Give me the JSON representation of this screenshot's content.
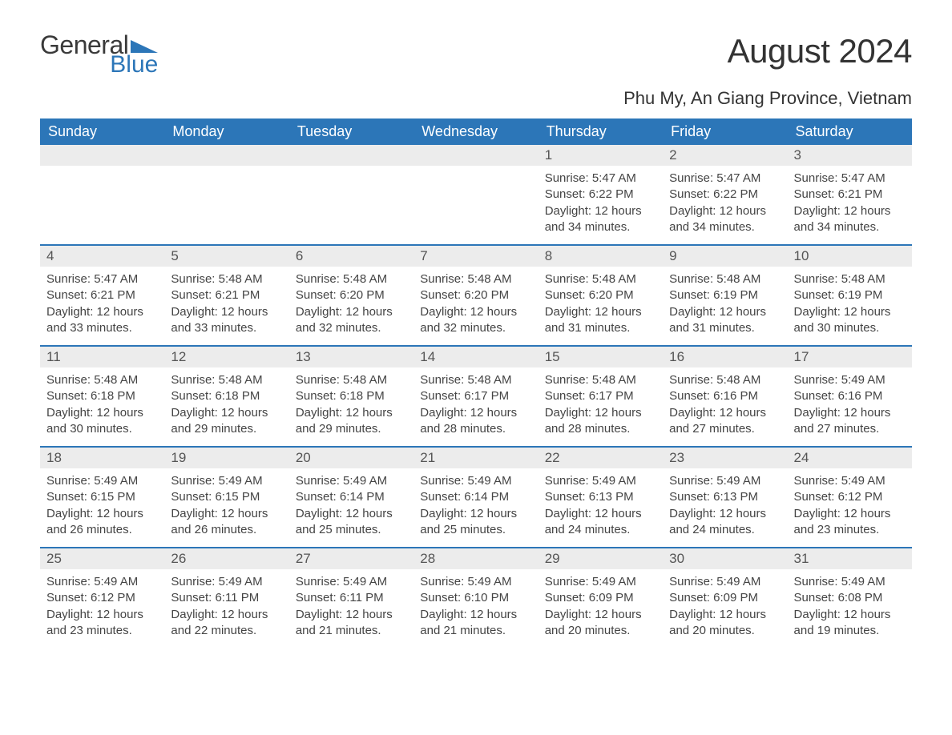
{
  "brand": {
    "word1": "General",
    "word2": "Blue",
    "triangle_color": "#2c76b8"
  },
  "title": "August 2024",
  "location": "Phu My, An Giang Province, Vietnam",
  "colors": {
    "header_bg": "#2c76b8",
    "header_text": "#ffffff",
    "daynum_bg": "#ececec",
    "week_border": "#2c76b8",
    "body_text": "#444444",
    "page_bg": "#ffffff"
  },
  "typography": {
    "title_fontsize": 42,
    "location_fontsize": 22,
    "weekday_fontsize": 18,
    "daynum_fontsize": 17,
    "body_fontsize": 15
  },
  "layout": {
    "columns": 7,
    "rows": 5,
    "first_day_column_index": 4
  },
  "weekdays": [
    "Sunday",
    "Monday",
    "Tuesday",
    "Wednesday",
    "Thursday",
    "Friday",
    "Saturday"
  ],
  "weeks": [
    [
      null,
      null,
      null,
      null,
      {
        "n": "1",
        "sr": "Sunrise: 5:47 AM",
        "ss": "Sunset: 6:22 PM",
        "d1": "Daylight: 12 hours",
        "d2": "and 34 minutes."
      },
      {
        "n": "2",
        "sr": "Sunrise: 5:47 AM",
        "ss": "Sunset: 6:22 PM",
        "d1": "Daylight: 12 hours",
        "d2": "and 34 minutes."
      },
      {
        "n": "3",
        "sr": "Sunrise: 5:47 AM",
        "ss": "Sunset: 6:21 PM",
        "d1": "Daylight: 12 hours",
        "d2": "and 34 minutes."
      }
    ],
    [
      {
        "n": "4",
        "sr": "Sunrise: 5:47 AM",
        "ss": "Sunset: 6:21 PM",
        "d1": "Daylight: 12 hours",
        "d2": "and 33 minutes."
      },
      {
        "n": "5",
        "sr": "Sunrise: 5:48 AM",
        "ss": "Sunset: 6:21 PM",
        "d1": "Daylight: 12 hours",
        "d2": "and 33 minutes."
      },
      {
        "n": "6",
        "sr": "Sunrise: 5:48 AM",
        "ss": "Sunset: 6:20 PM",
        "d1": "Daylight: 12 hours",
        "d2": "and 32 minutes."
      },
      {
        "n": "7",
        "sr": "Sunrise: 5:48 AM",
        "ss": "Sunset: 6:20 PM",
        "d1": "Daylight: 12 hours",
        "d2": "and 32 minutes."
      },
      {
        "n": "8",
        "sr": "Sunrise: 5:48 AM",
        "ss": "Sunset: 6:20 PM",
        "d1": "Daylight: 12 hours",
        "d2": "and 31 minutes."
      },
      {
        "n": "9",
        "sr": "Sunrise: 5:48 AM",
        "ss": "Sunset: 6:19 PM",
        "d1": "Daylight: 12 hours",
        "d2": "and 31 minutes."
      },
      {
        "n": "10",
        "sr": "Sunrise: 5:48 AM",
        "ss": "Sunset: 6:19 PM",
        "d1": "Daylight: 12 hours",
        "d2": "and 30 minutes."
      }
    ],
    [
      {
        "n": "11",
        "sr": "Sunrise: 5:48 AM",
        "ss": "Sunset: 6:18 PM",
        "d1": "Daylight: 12 hours",
        "d2": "and 30 minutes."
      },
      {
        "n": "12",
        "sr": "Sunrise: 5:48 AM",
        "ss": "Sunset: 6:18 PM",
        "d1": "Daylight: 12 hours",
        "d2": "and 29 minutes."
      },
      {
        "n": "13",
        "sr": "Sunrise: 5:48 AM",
        "ss": "Sunset: 6:18 PM",
        "d1": "Daylight: 12 hours",
        "d2": "and 29 minutes."
      },
      {
        "n": "14",
        "sr": "Sunrise: 5:48 AM",
        "ss": "Sunset: 6:17 PM",
        "d1": "Daylight: 12 hours",
        "d2": "and 28 minutes."
      },
      {
        "n": "15",
        "sr": "Sunrise: 5:48 AM",
        "ss": "Sunset: 6:17 PM",
        "d1": "Daylight: 12 hours",
        "d2": "and 28 minutes."
      },
      {
        "n": "16",
        "sr": "Sunrise: 5:48 AM",
        "ss": "Sunset: 6:16 PM",
        "d1": "Daylight: 12 hours",
        "d2": "and 27 minutes."
      },
      {
        "n": "17",
        "sr": "Sunrise: 5:49 AM",
        "ss": "Sunset: 6:16 PM",
        "d1": "Daylight: 12 hours",
        "d2": "and 27 minutes."
      }
    ],
    [
      {
        "n": "18",
        "sr": "Sunrise: 5:49 AM",
        "ss": "Sunset: 6:15 PM",
        "d1": "Daylight: 12 hours",
        "d2": "and 26 minutes."
      },
      {
        "n": "19",
        "sr": "Sunrise: 5:49 AM",
        "ss": "Sunset: 6:15 PM",
        "d1": "Daylight: 12 hours",
        "d2": "and 26 minutes."
      },
      {
        "n": "20",
        "sr": "Sunrise: 5:49 AM",
        "ss": "Sunset: 6:14 PM",
        "d1": "Daylight: 12 hours",
        "d2": "and 25 minutes."
      },
      {
        "n": "21",
        "sr": "Sunrise: 5:49 AM",
        "ss": "Sunset: 6:14 PM",
        "d1": "Daylight: 12 hours",
        "d2": "and 25 minutes."
      },
      {
        "n": "22",
        "sr": "Sunrise: 5:49 AM",
        "ss": "Sunset: 6:13 PM",
        "d1": "Daylight: 12 hours",
        "d2": "and 24 minutes."
      },
      {
        "n": "23",
        "sr": "Sunrise: 5:49 AM",
        "ss": "Sunset: 6:13 PM",
        "d1": "Daylight: 12 hours",
        "d2": "and 24 minutes."
      },
      {
        "n": "24",
        "sr": "Sunrise: 5:49 AM",
        "ss": "Sunset: 6:12 PM",
        "d1": "Daylight: 12 hours",
        "d2": "and 23 minutes."
      }
    ],
    [
      {
        "n": "25",
        "sr": "Sunrise: 5:49 AM",
        "ss": "Sunset: 6:12 PM",
        "d1": "Daylight: 12 hours",
        "d2": "and 23 minutes."
      },
      {
        "n": "26",
        "sr": "Sunrise: 5:49 AM",
        "ss": "Sunset: 6:11 PM",
        "d1": "Daylight: 12 hours",
        "d2": "and 22 minutes."
      },
      {
        "n": "27",
        "sr": "Sunrise: 5:49 AM",
        "ss": "Sunset: 6:11 PM",
        "d1": "Daylight: 12 hours",
        "d2": "and 21 minutes."
      },
      {
        "n": "28",
        "sr": "Sunrise: 5:49 AM",
        "ss": "Sunset: 6:10 PM",
        "d1": "Daylight: 12 hours",
        "d2": "and 21 minutes."
      },
      {
        "n": "29",
        "sr": "Sunrise: 5:49 AM",
        "ss": "Sunset: 6:09 PM",
        "d1": "Daylight: 12 hours",
        "d2": "and 20 minutes."
      },
      {
        "n": "30",
        "sr": "Sunrise: 5:49 AM",
        "ss": "Sunset: 6:09 PM",
        "d1": "Daylight: 12 hours",
        "d2": "and 20 minutes."
      },
      {
        "n": "31",
        "sr": "Sunrise: 5:49 AM",
        "ss": "Sunset: 6:08 PM",
        "d1": "Daylight: 12 hours",
        "d2": "and 19 minutes."
      }
    ]
  ]
}
